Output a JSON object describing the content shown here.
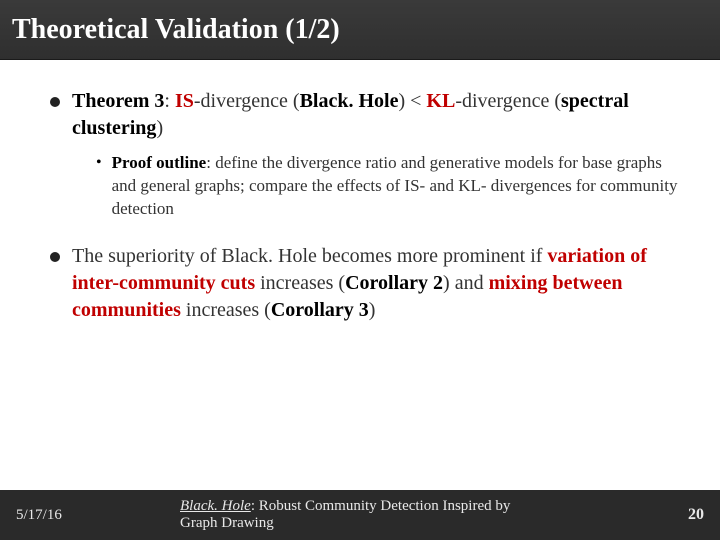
{
  "header": {
    "title": "Theoretical Validation (1/2)"
  },
  "content": {
    "b1_prefix": "Theorem 3",
    "b1_part1": ": ",
    "b1_hl1": "IS",
    "b1_mid1": "-divergence (",
    "b1_bold1": "Black. Hole",
    "b1_cmp": ") < ",
    "b1_hl2": "KL",
    "b1_mid2": "-divergence (",
    "b1_bold2": "spectral clustering",
    "b1_end": ")",
    "s1_prefix": "Proof outline",
    "s1_body": ": define the divergence ratio and generative models for base graphs and general graphs; compare the effects of IS- and KL- divergences for community detection",
    "b2_pre": "The superiority of Black. Hole becomes more prominent if ",
    "b2_hl1": "variation of inter-community cuts",
    "b2_mid1": " increases (",
    "b2_bold1": "Corollary 2",
    "b2_mid2": ") and ",
    "b2_hl2": "mixing between communities",
    "b2_mid3": " increases (",
    "b2_bold2": "Corollary 3",
    "b2_end": ")"
  },
  "footer": {
    "date": "5/17/16",
    "title_ul": "Black. Hole",
    "title_rest": ": Robust Community Detection Inspired by Graph Drawing",
    "page": "20"
  }
}
